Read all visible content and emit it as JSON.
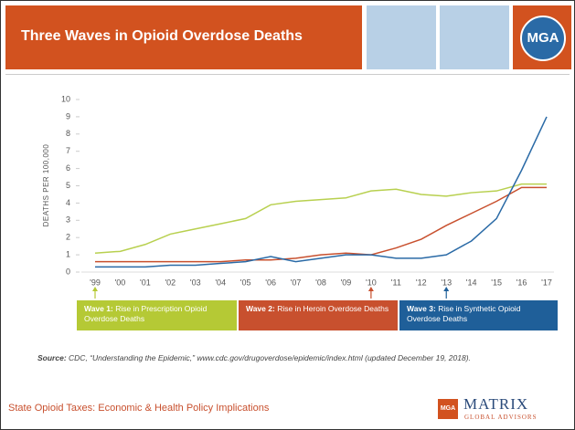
{
  "header": {
    "title": "Three Waves in Opioid Overdose Deaths",
    "logo": "MGA"
  },
  "chart_data": {
    "type": "line",
    "y_label": "DEATHS PER 100,000",
    "categories": [
      "'99",
      "'00",
      "'01",
      "'02",
      "'03",
      "'04",
      "'05",
      "'06",
      "'07",
      "'08",
      "'09",
      "'10",
      "'11",
      "'12",
      "'13",
      "'14",
      "'15",
      "'16",
      "'17"
    ],
    "ylim": [
      0,
      10
    ],
    "yticks": [
      0,
      1,
      2,
      3,
      4,
      5,
      6,
      7,
      8,
      9,
      10
    ],
    "series": [
      {
        "color": "#b8d04f",
        "values": [
          1.1,
          1.2,
          1.6,
          2.2,
          2.5,
          2.8,
          3.1,
          3.9,
          4.1,
          4.2,
          4.3,
          4.7,
          4.8,
          4.5,
          4.4,
          4.6,
          4.7,
          5.1,
          5.1
        ]
      },
      {
        "color": "#c8502e",
        "values": [
          0.6,
          0.6,
          0.6,
          0.6,
          0.6,
          0.6,
          0.7,
          0.7,
          0.8,
          1.0,
          1.1,
          1.0,
          1.4,
          1.9,
          2.7,
          3.4,
          4.1,
          4.9,
          4.9
        ]
      },
      {
        "color": "#2a6aa6",
        "values": [
          0.3,
          0.3,
          0.3,
          0.4,
          0.4,
          0.5,
          0.6,
          0.9,
          0.6,
          0.8,
          1.0,
          1.0,
          0.8,
          0.8,
          1.0,
          1.8,
          3.1,
          5.9,
          9.0
        ]
      }
    ],
    "waves": [
      {
        "label": "Wave 1:",
        "text": "Rise in Prescription Opioid Overdose Deaths",
        "color": "#b5c935",
        "start": 0
      },
      {
        "label": "Wave 2:",
        "text": "Rise in Heroin Overdose Deaths",
        "color": "#c8502e",
        "start": 11
      },
      {
        "label": "Wave 3:",
        "text": "Rise in Synthetic Opioid Overdose Deaths",
        "color": "#1f5f99",
        "start": 14
      }
    ],
    "source_label": "Source:",
    "source": "CDC, “Understanding the Epidemic,” www.cdc.gov/drugoverdose/epidemic/index.html (updated December 19, 2018)."
  },
  "footer": {
    "text": "State Opioid Taxes: Economic & Health Policy Implications",
    "logo_name": "MATRIX",
    "logo_sub": "GLOBAL ADVISORS",
    "logo_icon": "MGA"
  }
}
